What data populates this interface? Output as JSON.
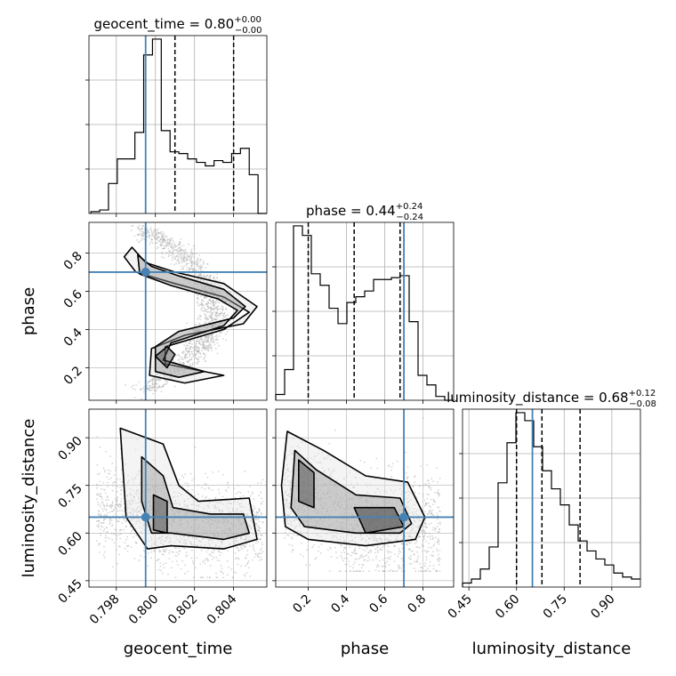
{
  "chart_data": {
    "type": "corner",
    "parameters": [
      "geocent_time",
      "phase",
      "luminosity_distance"
    ],
    "titles": [
      {
        "param": "geocent_time",
        "text": "geocent_time = 0.80",
        "sup": "+0.00",
        "sub": "−0.00"
      },
      {
        "param": "phase",
        "text": "phase = 0.44",
        "sup": "+0.24",
        "sub": "−0.24"
      },
      {
        "param": "luminosity_distance",
        "text": "luminosity_distance = 0.68",
        "sup": "+0.12",
        "sub": "−0.08"
      }
    ],
    "axis_labels": {
      "x": [
        "geocent_time",
        "phase",
        "luminosity_distance"
      ],
      "y": [
        "phase",
        "luminosity_distance"
      ]
    },
    "ranges": {
      "geocent_time": [
        0.7966,
        0.8057
      ],
      "phase": [
        0.03,
        0.96
      ],
      "luminosity_distance": [
        0.43,
        0.99
      ]
    },
    "ticks": {
      "geocent_time": [
        {
          "v": 0.798,
          "l": "0.798"
        },
        {
          "v": 0.8,
          "l": "0.800"
        },
        {
          "v": 0.802,
          "l": "0.802"
        },
        {
          "v": 0.804,
          "l": "0.804"
        }
      ],
      "phase": [
        {
          "v": 0.2,
          "l": "0.2"
        },
        {
          "v": 0.4,
          "l": "0.4"
        },
        {
          "v": 0.6,
          "l": "0.6"
        },
        {
          "v": 0.8,
          "l": "0.8"
        }
      ],
      "luminosity_distance": [
        {
          "v": 0.45,
          "l": "0.45"
        },
        {
          "v": 0.6,
          "l": "0.60"
        },
        {
          "v": 0.75,
          "l": "0.75"
        },
        {
          "v": 0.9,
          "l": "0.90"
        }
      ]
    },
    "injection": {
      "geocent_time": 0.7995,
      "phase": 0.7,
      "luminosity_distance": 0.65
    },
    "quantiles": {
      "geocent_time": [
        0.7995,
        0.801,
        0.804
      ],
      "phase": [
        0.2,
        0.44,
        0.68
      ],
      "luminosity_distance": [
        0.6,
        0.68,
        0.8
      ]
    },
    "histograms": {
      "geocent_time": {
        "edges": [
          0.7967,
          0.79715,
          0.7976,
          0.79805,
          0.7985,
          0.79895,
          0.7994,
          0.79985,
          0.8003,
          0.80075,
          0.8012,
          0.80165,
          0.8021,
          0.80255,
          0.803,
          0.80345,
          0.8039,
          0.80435,
          0.8048,
          0.80525,
          0.8057
        ],
        "counts": [
          1,
          2,
          17,
          31,
          31,
          46,
          90,
          99,
          47,
          35,
          34,
          31,
          29,
          27,
          30,
          29,
          34,
          37,
          22,
          0
        ]
      },
      "phase": {
        "edges": [
          0.03,
          0.0765,
          0.123,
          0.1695,
          0.216,
          0.2625,
          0.309,
          0.3555,
          0.402,
          0.4485,
          0.495,
          0.5415,
          0.588,
          0.6345,
          0.681,
          0.7275,
          0.774,
          0.8205,
          0.867,
          0.9135,
          0.96
        ],
        "counts": [
          3,
          16,
          91,
          86,
          66,
          60,
          48,
          40,
          51,
          54,
          57,
          63,
          63,
          64,
          65,
          41,
          13,
          8,
          2,
          0
        ]
      },
      "luminosity_distance": {
        "edges": [
          0.43,
          0.458,
          0.486,
          0.514,
          0.542,
          0.57,
          0.598,
          0.626,
          0.654,
          0.682,
          0.71,
          0.738,
          0.766,
          0.794,
          0.822,
          0.85,
          0.878,
          0.906,
          0.934,
          0.962,
          0.99
        ],
        "counts": [
          2,
          4,
          9,
          20,
          52,
          72,
          87,
          83,
          70,
          58,
          49,
          41,
          31,
          23,
          18,
          14,
          11,
          7,
          5,
          4
        ]
      }
    },
    "colors": {
      "injection": "#4682b4",
      "lines": "#000000",
      "grid": "#b0b0b0",
      "samples": "#b3b3b3"
    }
  }
}
